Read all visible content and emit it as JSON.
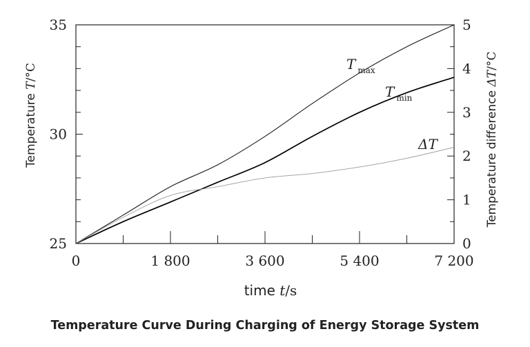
{
  "chart_data": {
    "type": "line",
    "caption": "Temperature Curve During Charging of Energy Storage System",
    "xlabel": {
      "prefix": "time ",
      "var": "t",
      "unit": "/s"
    },
    "ylabel_left": {
      "prefix": "Temperature ",
      "var": "T",
      "unit": "/°C"
    },
    "ylabel_right": {
      "prefix": "Temperature difference ",
      "var": "ΔT",
      "unit": "/°C"
    },
    "xlim": [
      0,
      7200
    ],
    "ylim_left": [
      25,
      35
    ],
    "ylim_right": [
      0,
      5
    ],
    "x_ticks": [
      0,
      1800,
      3600,
      5400,
      7200
    ],
    "x_tick_labels": [
      "0",
      "1 800",
      "3 600",
      "5 400",
      "7 200"
    ],
    "y_left_ticks": [
      25,
      30,
      35
    ],
    "y_left_tick_labels": [
      "25",
      "30",
      "35"
    ],
    "y_right_ticks": [
      0,
      1,
      2,
      3,
      4,
      5
    ],
    "y_right_tick_labels": [
      "0",
      "1",
      "2",
      "3",
      "4",
      "5"
    ],
    "series": [
      {
        "label": "T",
        "sub": "max",
        "axis": "left",
        "color": "#1a1a1a",
        "width": 1.1,
        "x": [
          0,
          900,
          1800,
          2700,
          3600,
          4500,
          5400,
          6300,
          7200
        ],
        "y": [
          25.0,
          26.3,
          27.6,
          28.6,
          29.9,
          31.4,
          32.8,
          34.0,
          35.0
        ]
      },
      {
        "label": "T",
        "sub": "min",
        "axis": "left",
        "color": "#000000",
        "width": 1.7,
        "x": [
          0,
          900,
          1800,
          2700,
          3600,
          4500,
          5400,
          6300,
          7200
        ],
        "y": [
          25.0,
          26.0,
          26.9,
          27.8,
          28.7,
          29.9,
          31.0,
          31.9,
          32.6
        ]
      },
      {
        "label": "ΔT",
        "sub": "",
        "axis": "right",
        "color": "#9a9a9a",
        "width": 0.9,
        "x": [
          0,
          900,
          1800,
          2700,
          3600,
          4500,
          5400,
          6300,
          7200
        ],
        "y": [
          0.0,
          0.6,
          1.1,
          1.3,
          1.5,
          1.6,
          1.75,
          1.95,
          2.2
        ]
      }
    ]
  }
}
